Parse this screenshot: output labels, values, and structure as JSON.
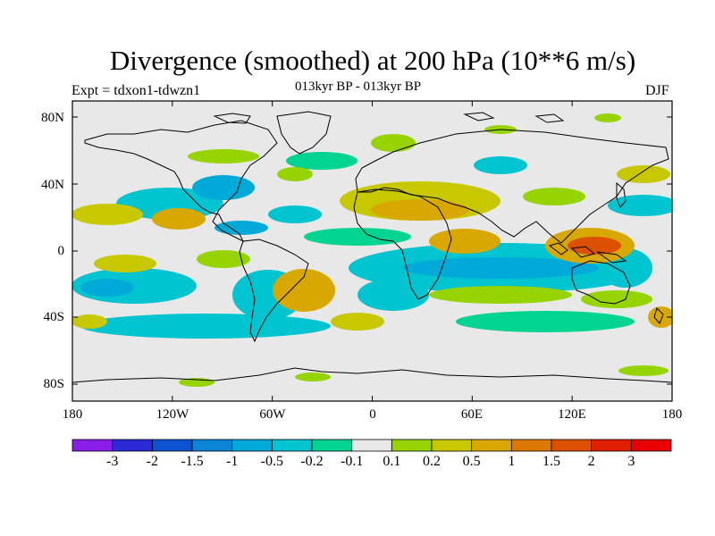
{
  "title": "Divergence (smoothed) at 200 hPa (10**6 m/s)",
  "subtitle": "013kyr BP - 013kyr BP",
  "experiment": "Expt = tdxon1-tdwzn1",
  "season": "DJF",
  "map": {
    "lat_ticks": [
      "80N",
      "40N",
      "0",
      "40S",
      "80S"
    ],
    "lon_ticks": [
      "180",
      "120W",
      "60W",
      "0",
      "60E",
      "120E",
      "180"
    ],
    "background_color": "#e8e8e8",
    "coastline_color": "#000000"
  },
  "colorbar": {
    "labels": [
      "-3",
      "-2",
      "-1.5",
      "-1",
      "-0.5",
      "-0.2",
      "-0.1",
      "0.1",
      "0.2",
      "0.5",
      "1",
      "1.5",
      "2",
      "3"
    ],
    "colors": [
      "#8a1de6",
      "#2a2bd6",
      "#0a52d0",
      "#0b84d8",
      "#00aad8",
      "#00c4d0",
      "#00d490",
      "#e8e8e8",
      "#96d400",
      "#c8c800",
      "#d8a800",
      "#dc7800",
      "#dc5000",
      "#e01e00",
      "#e80000"
    ]
  }
}
